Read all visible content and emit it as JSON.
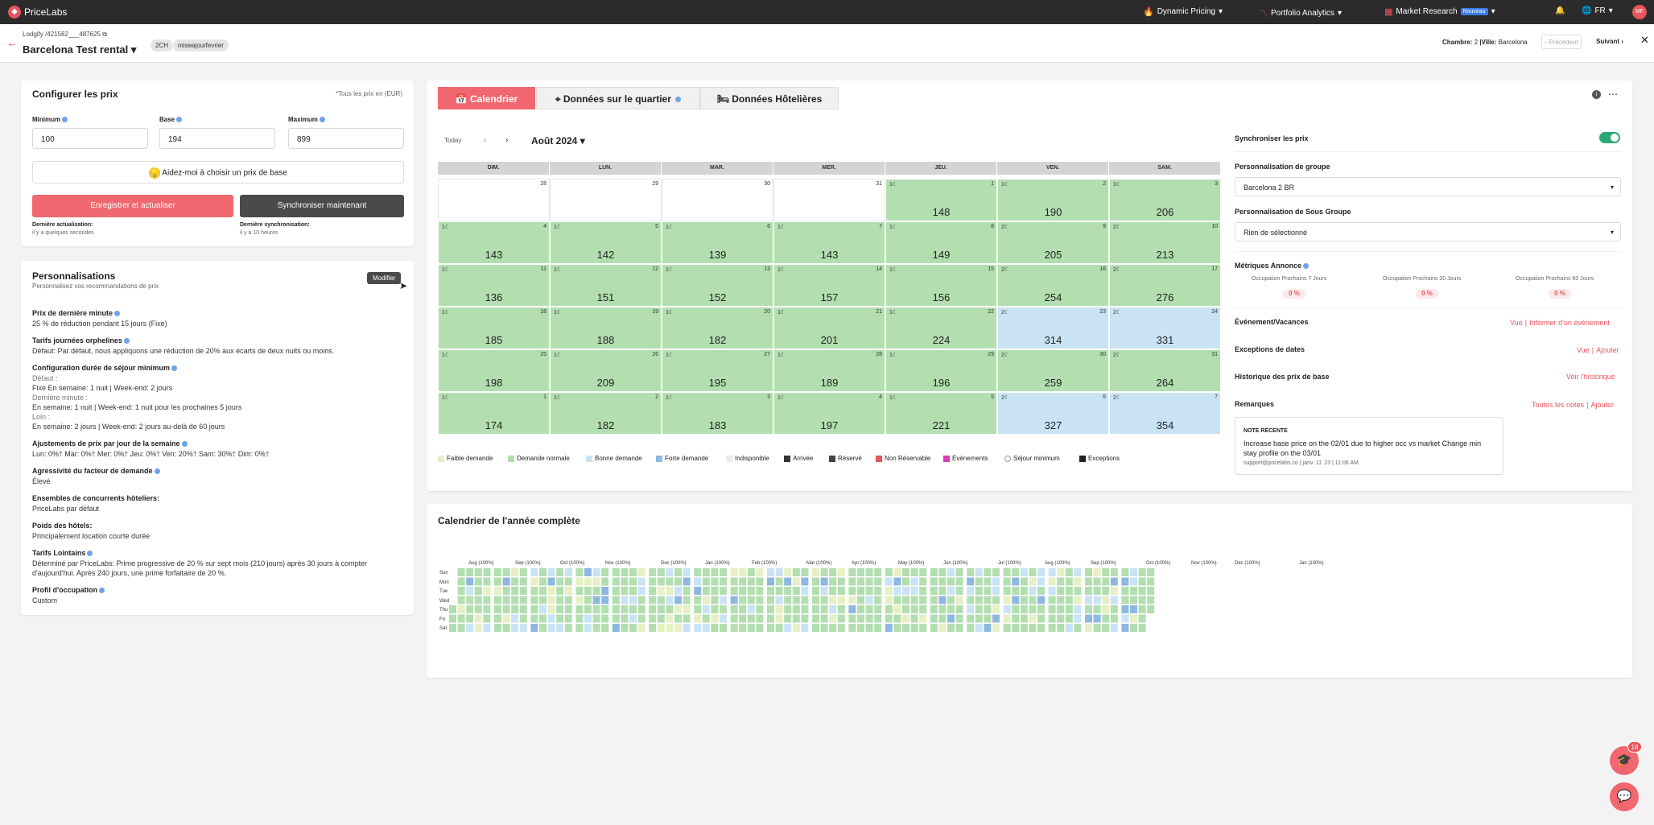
{
  "nav": {
    "brand": "PriceLabs",
    "dynamic_pricing": "Dynamic Pricing",
    "portfolio_analytics": "Portfolio Analytics",
    "market_research": "Market Research",
    "new_badge": "Nouveau",
    "language": "FR",
    "avatar_initials": "MF"
  },
  "listing": {
    "source": "Lodgify /421562___487625",
    "name": "Barcelona Test rental",
    "tags": [
      "2CH",
      "miseajourfevrier"
    ],
    "room_label": "Chambre:",
    "room_value": "2",
    "city_label": "|Ville:",
    "city_value": "Barcelona",
    "prev": "Précédent",
    "next": "Suivant"
  },
  "config": {
    "title": "Configurer les prix",
    "currency_note": "*Tous les prix en (EUR)",
    "min_label": "Minimum",
    "base_label": "Base",
    "max_label": "Maximum",
    "min_value": "100",
    "base_value": "194",
    "max_value": "899",
    "help_button": "Aidez-moi à choisir un prix de base",
    "save_button": "Enregistrer et actualiser",
    "sync_button": "Synchroniser maintenant",
    "last_update_label": "Dernière actualisation:",
    "last_update_value": "il y a quelques secondes",
    "last_sync_label": "Dernière synchronisation:",
    "last_sync_value": "il y a 10 heures"
  },
  "custom": {
    "title": "Personnalisations",
    "subtitle": "Personnalisez vos recommandations de prix",
    "edit_button": "Modifier",
    "sections": [
      {
        "title": "Prix de dernière minute",
        "lines": [
          "25 % de réduction pendant 15 jours (Fixe)"
        ]
      },
      {
        "title": "Tarifs journées orphelines",
        "lines": [
          "Défaut: Par défaut, nous appliquons une réduction de 20% aux écarts de deux nuits ou moins."
        ]
      },
      {
        "title": "Configuration durée de séjour minimum",
        "lines": [
          "Défaut :",
          "Fixe En semaine: 1 nuit | Week-end: 2 jours",
          "Dernière minute :",
          "En semaine: 1 nuit | Week-end: 1 nuit pour les prochaines 5 jours",
          "Loin :",
          "En semaine: 2 jours | Week-end: 2 jours au-delà de 60 jours"
        ]
      },
      {
        "title": "Ajustements de prix par jour de la semaine",
        "lines": [
          "Lun: 0%🡑 Mar: 0%🡑 Mer: 0%🡑 Jeu: 0%🡑 Ven: 20%🡑 Sam: 30%🡑 Dim: 0%🡑"
        ]
      },
      {
        "title": "Agressivité du facteur de demande",
        "lines": [
          "Élevé"
        ]
      },
      {
        "title": "Ensembles de concurrents hôteliers:",
        "lines": [
          "PriceLabs par défaut"
        ]
      },
      {
        "title": "Poids des hôtels:",
        "lines": [
          "Principalement location courte durée"
        ]
      },
      {
        "title": "Tarifs Lointains",
        "lines": [
          "Déterminé par PriceLabs: Prime progressive de 20 % sur sept mois (210 jours) après 30 jours à compter",
          "d'aujourd'hui. Après 240 jours, une prime forfaitaire de 20 %."
        ]
      },
      {
        "title": "Profil d'occupation",
        "lines": [
          "Custom"
        ]
      }
    ]
  },
  "tabs": [
    "Calendrier",
    "Données sur le quartier",
    "Données Hôtelières"
  ],
  "calendar": {
    "today": "Today",
    "month": "Août 2024",
    "weekdays": [
      "DIM.",
      "LUN.",
      "MAR.",
      "MER.",
      "JEU.",
      "VEN.",
      "SAM."
    ],
    "rows": [
      [
        {
          "d": "28",
          "p": "",
          "c": "empty"
        },
        {
          "d": "29",
          "p": "",
          "c": "empty"
        },
        {
          "d": "30",
          "p": "",
          "c": "empty"
        },
        {
          "d": "31",
          "p": "",
          "c": "empty"
        },
        {
          "d": "1",
          "p": "148",
          "c": "green",
          "m": "1☾"
        },
        {
          "d": "2",
          "p": "190",
          "c": "green",
          "m": "1☾"
        },
        {
          "d": "3",
          "p": "206",
          "c": "green",
          "m": "1☾"
        }
      ],
      [
        {
          "d": "4",
          "p": "143",
          "c": "green",
          "m": "1☾"
        },
        {
          "d": "5",
          "p": "142",
          "c": "green",
          "m": "1☾"
        },
        {
          "d": "6",
          "p": "139",
          "c": "green",
          "m": "1☾"
        },
        {
          "d": "7",
          "p": "143",
          "c": "green",
          "m": "1☾"
        },
        {
          "d": "8",
          "p": "149",
          "c": "green",
          "m": "1☾"
        },
        {
          "d": "9",
          "p": "205",
          "c": "green",
          "m": "2☾"
        },
        {
          "d": "10",
          "p": "213",
          "c": "green",
          "m": "2☾"
        }
      ],
      [
        {
          "d": "11",
          "p": "136",
          "c": "green",
          "m": "1☾"
        },
        {
          "d": "12",
          "p": "151",
          "c": "green",
          "m": "1☾"
        },
        {
          "d": "13",
          "p": "152",
          "c": "green",
          "m": "1☾"
        },
        {
          "d": "14",
          "p": "157",
          "c": "green",
          "m": "1☾"
        },
        {
          "d": "15",
          "p": "156",
          "c": "green",
          "m": "1☾"
        },
        {
          "d": "16",
          "p": "254",
          "c": "green",
          "m": "2☾"
        },
        {
          "d": "17",
          "p": "276",
          "c": "green",
          "m": "2☾"
        }
      ],
      [
        {
          "d": "18",
          "p": "185",
          "c": "green",
          "m": "1☾"
        },
        {
          "d": "19",
          "p": "188",
          "c": "green",
          "m": "1☾"
        },
        {
          "d": "20",
          "p": "182",
          "c": "green",
          "m": "1☾"
        },
        {
          "d": "21",
          "p": "201",
          "c": "green",
          "m": "1☾"
        },
        {
          "d": "22",
          "p": "224",
          "c": "green",
          "m": "1☾"
        },
        {
          "d": "23",
          "p": "314",
          "c": "blue",
          "m": "2☾"
        },
        {
          "d": "24",
          "p": "331",
          "c": "blue",
          "m": "2☾"
        }
      ],
      [
        {
          "d": "25",
          "p": "198",
          "c": "green",
          "m": "1☾"
        },
        {
          "d": "26",
          "p": "209",
          "c": "green",
          "m": "1☾"
        },
        {
          "d": "27",
          "p": "195",
          "c": "green",
          "m": "1☾"
        },
        {
          "d": "28",
          "p": "189",
          "c": "green",
          "m": "1☾"
        },
        {
          "d": "29",
          "p": "196",
          "c": "green",
          "m": "1☾"
        },
        {
          "d": "30",
          "p": "259",
          "c": "green",
          "m": "2☾"
        },
        {
          "d": "31",
          "p": "264",
          "c": "green",
          "m": "2☾"
        }
      ],
      [
        {
          "d": "1",
          "p": "174",
          "c": "green",
          "m": "1☾"
        },
        {
          "d": "2",
          "p": "182",
          "c": "green",
          "m": "1☾"
        },
        {
          "d": "3",
          "p": "183",
          "c": "green",
          "m": "1☾"
        },
        {
          "d": "4",
          "p": "197",
          "c": "green",
          "m": "1☾"
        },
        {
          "d": "5",
          "p": "221",
          "c": "green",
          "m": "1☾"
        },
        {
          "d": "6",
          "p": "327",
          "c": "blue",
          "m": "2☾"
        },
        {
          "d": "7",
          "p": "354",
          "c": "blue",
          "m": "2☾"
        }
      ]
    ],
    "legend": [
      {
        "label": "Faible demande",
        "color": "#e7f0c4"
      },
      {
        "label": "Demande normale",
        "color": "#b3deb0"
      },
      {
        "label": "Bonne demande",
        "color": "#c9e3f5"
      },
      {
        "label": "Forte demande",
        "color": "#8fb8e0"
      },
      {
        "label": "Indisponible",
        "color": "#ececec"
      },
      {
        "label": "Arrivée",
        "color": "#333333"
      },
      {
        "label": "Réservé",
        "color": "#444444"
      },
      {
        "label": "Non Réservable",
        "color": "#e8545f"
      },
      {
        "label": "Événements",
        "color": "#d63fb8"
      },
      {
        "label": "Séjour minimum",
        "color": "#ffffff"
      },
      {
        "label": "Exceptions",
        "color": "#222222"
      }
    ]
  },
  "panel": {
    "sync_label": "Synchroniser les prix",
    "group_label": "Personnalisation de groupe",
    "group_value": "Barcelona 2 BR",
    "subgroup_label": "Personnalisation de Sous Groupe",
    "subgroup_value": "Rien de sélectionné",
    "metrics_label": "Métriques Annonce",
    "metrics": [
      {
        "label": "Occupation Prochains 7 Jours",
        "value": "0 %"
      },
      {
        "label": "Occupation Prochains 30 Jours",
        "value": "0 %"
      },
      {
        "label": "Occupation Prochains 60 Jours",
        "value": "0 %"
      }
    ],
    "events_label": "Événement/Vacances",
    "events_view": "Vue",
    "events_sep": "|",
    "events_inform": "Informer d'un événement",
    "exceptions_label": "Exceptions de dates",
    "exceptions_view": "Vue",
    "exceptions_sep": "|",
    "exceptions_add": "Ajouter",
    "history_label": "Historique des prix de base",
    "history_link": "Voir l'historique",
    "notes_label": "Remarques",
    "notes_all": "Toutes les notes",
    "notes_sep": "|",
    "notes_add": "Ajouter",
    "note_title": "NOTE RÉCENTE",
    "note_text": "Increase base price on the 02/01 due to higher occ vs market Change min stay profile on the 03/01",
    "note_meta": "support@pricelabs.co | janv. 11' 23 | 11:06 AM"
  },
  "year": {
    "title": "Calendrier de l'année complète",
    "months": [
      "Aug (100%)",
      "Sep (100%)",
      "Oct (100%)",
      "Nov (100%)",
      "Dec (100%)",
      "Jan (100%)",
      "Feb (100%)",
      "Mar (100%)",
      "Apr (100%)",
      "May (100%)",
      "Jun (100%)",
      "Jul (100%)",
      "Aug (100%)",
      "Sep (100%)",
      "Oct (100%)",
      "Nov (100%)",
      "Dec (100%)",
      "Jan (100%)"
    ],
    "days": [
      "Sun",
      "Mon",
      "Tue",
      "Wed",
      "Thu",
      "Fri",
      "Sat"
    ]
  },
  "chat_count": "18",
  "colors": {
    "accent": "#f0676f",
    "green": "#b3deb0",
    "blue": "#c9e3f5"
  }
}
